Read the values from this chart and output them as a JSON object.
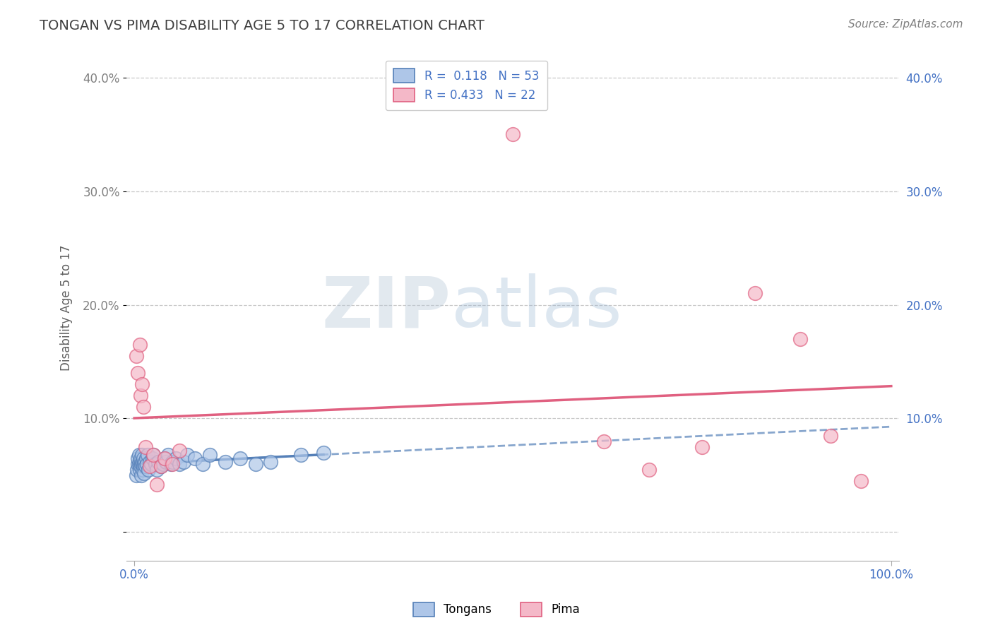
{
  "title": "TONGAN VS PIMA DISABILITY AGE 5 TO 17 CORRELATION CHART",
  "source_text": "Source: ZipAtlas.com",
  "ylabel": "Disability Age 5 to 17",
  "xlim": [
    -0.01,
    1.01
  ],
  "ylim": [
    -0.025,
    0.42
  ],
  "xtick_vals": [
    0.0,
    1.0
  ],
  "xtick_labels": [
    "0.0%",
    "100.0%"
  ],
  "ytick_vals": [
    0.0,
    0.1,
    0.2,
    0.3,
    0.4
  ],
  "ytick_labels_left": [
    "",
    "10.0%",
    "20.0%",
    "30.0%",
    "40.0%"
  ],
  "ytick_labels_right": [
    "",
    "10.0%",
    "20.0%",
    "30.0%",
    "40.0%"
  ],
  "grid_color": "#c8c8c8",
  "background_color": "#ffffff",
  "tongan_color": "#aec6e8",
  "pima_color": "#f4b8c8",
  "tongan_edge_color": "#5580b8",
  "pima_edge_color": "#e06080",
  "R_tongan": 0.118,
  "N_tongan": 53,
  "R_pima": 0.433,
  "N_pima": 22,
  "tongan_line_color": "#5580b8",
  "pima_line_color": "#e06080",
  "right_tick_color": "#4472c4",
  "left_tick_color": "#808080",
  "watermark_text1": "ZIP",
  "watermark_text2": "atlas",
  "title_color": "#404040",
  "axis_label_color": "#606060",
  "source_color": "#808080",
  "legend_label_tongan": "Tongans",
  "legend_label_pima": "Pima",
  "legend_text_color": "#4472c4",
  "tongan_x": [
    0.003,
    0.004,
    0.005,
    0.005,
    0.006,
    0.006,
    0.007,
    0.007,
    0.008,
    0.008,
    0.009,
    0.009,
    0.01,
    0.01,
    0.011,
    0.011,
    0.012,
    0.012,
    0.013,
    0.013,
    0.014,
    0.015,
    0.016,
    0.017,
    0.018,
    0.019,
    0.02,
    0.022,
    0.024,
    0.025,
    0.028,
    0.03,
    0.032,
    0.035,
    0.038,
    0.04,
    0.042,
    0.045,
    0.048,
    0.05,
    0.055,
    0.06,
    0.065,
    0.07,
    0.08,
    0.09,
    0.1,
    0.12,
    0.14,
    0.16,
    0.18,
    0.22,
    0.25
  ],
  "tongan_y": [
    0.05,
    0.055,
    0.06,
    0.065,
    0.06,
    0.068,
    0.062,
    0.055,
    0.058,
    0.065,
    0.06,
    0.05,
    0.062,
    0.068,
    0.055,
    0.06,
    0.058,
    0.065,
    0.052,
    0.06,
    0.062,
    0.058,
    0.065,
    0.06,
    0.068,
    0.055,
    0.062,
    0.06,
    0.065,
    0.068,
    0.06,
    0.055,
    0.062,
    0.058,
    0.06,
    0.065,
    0.062,
    0.068,
    0.06,
    0.062,
    0.065,
    0.06,
    0.062,
    0.068,
    0.065,
    0.06,
    0.068,
    0.062,
    0.065,
    0.06,
    0.062,
    0.068,
    0.07
  ],
  "pima_x": [
    0.003,
    0.005,
    0.007,
    0.008,
    0.01,
    0.012,
    0.015,
    0.02,
    0.025,
    0.03,
    0.035,
    0.04,
    0.05,
    0.06,
    0.5,
    0.62,
    0.68,
    0.75,
    0.82,
    0.88,
    0.92,
    0.96
  ],
  "pima_y": [
    0.155,
    0.14,
    0.165,
    0.12,
    0.13,
    0.11,
    0.075,
    0.058,
    0.068,
    0.042,
    0.058,
    0.065,
    0.06,
    0.072,
    0.35,
    0.08,
    0.055,
    0.075,
    0.21,
    0.17,
    0.085,
    0.045
  ]
}
